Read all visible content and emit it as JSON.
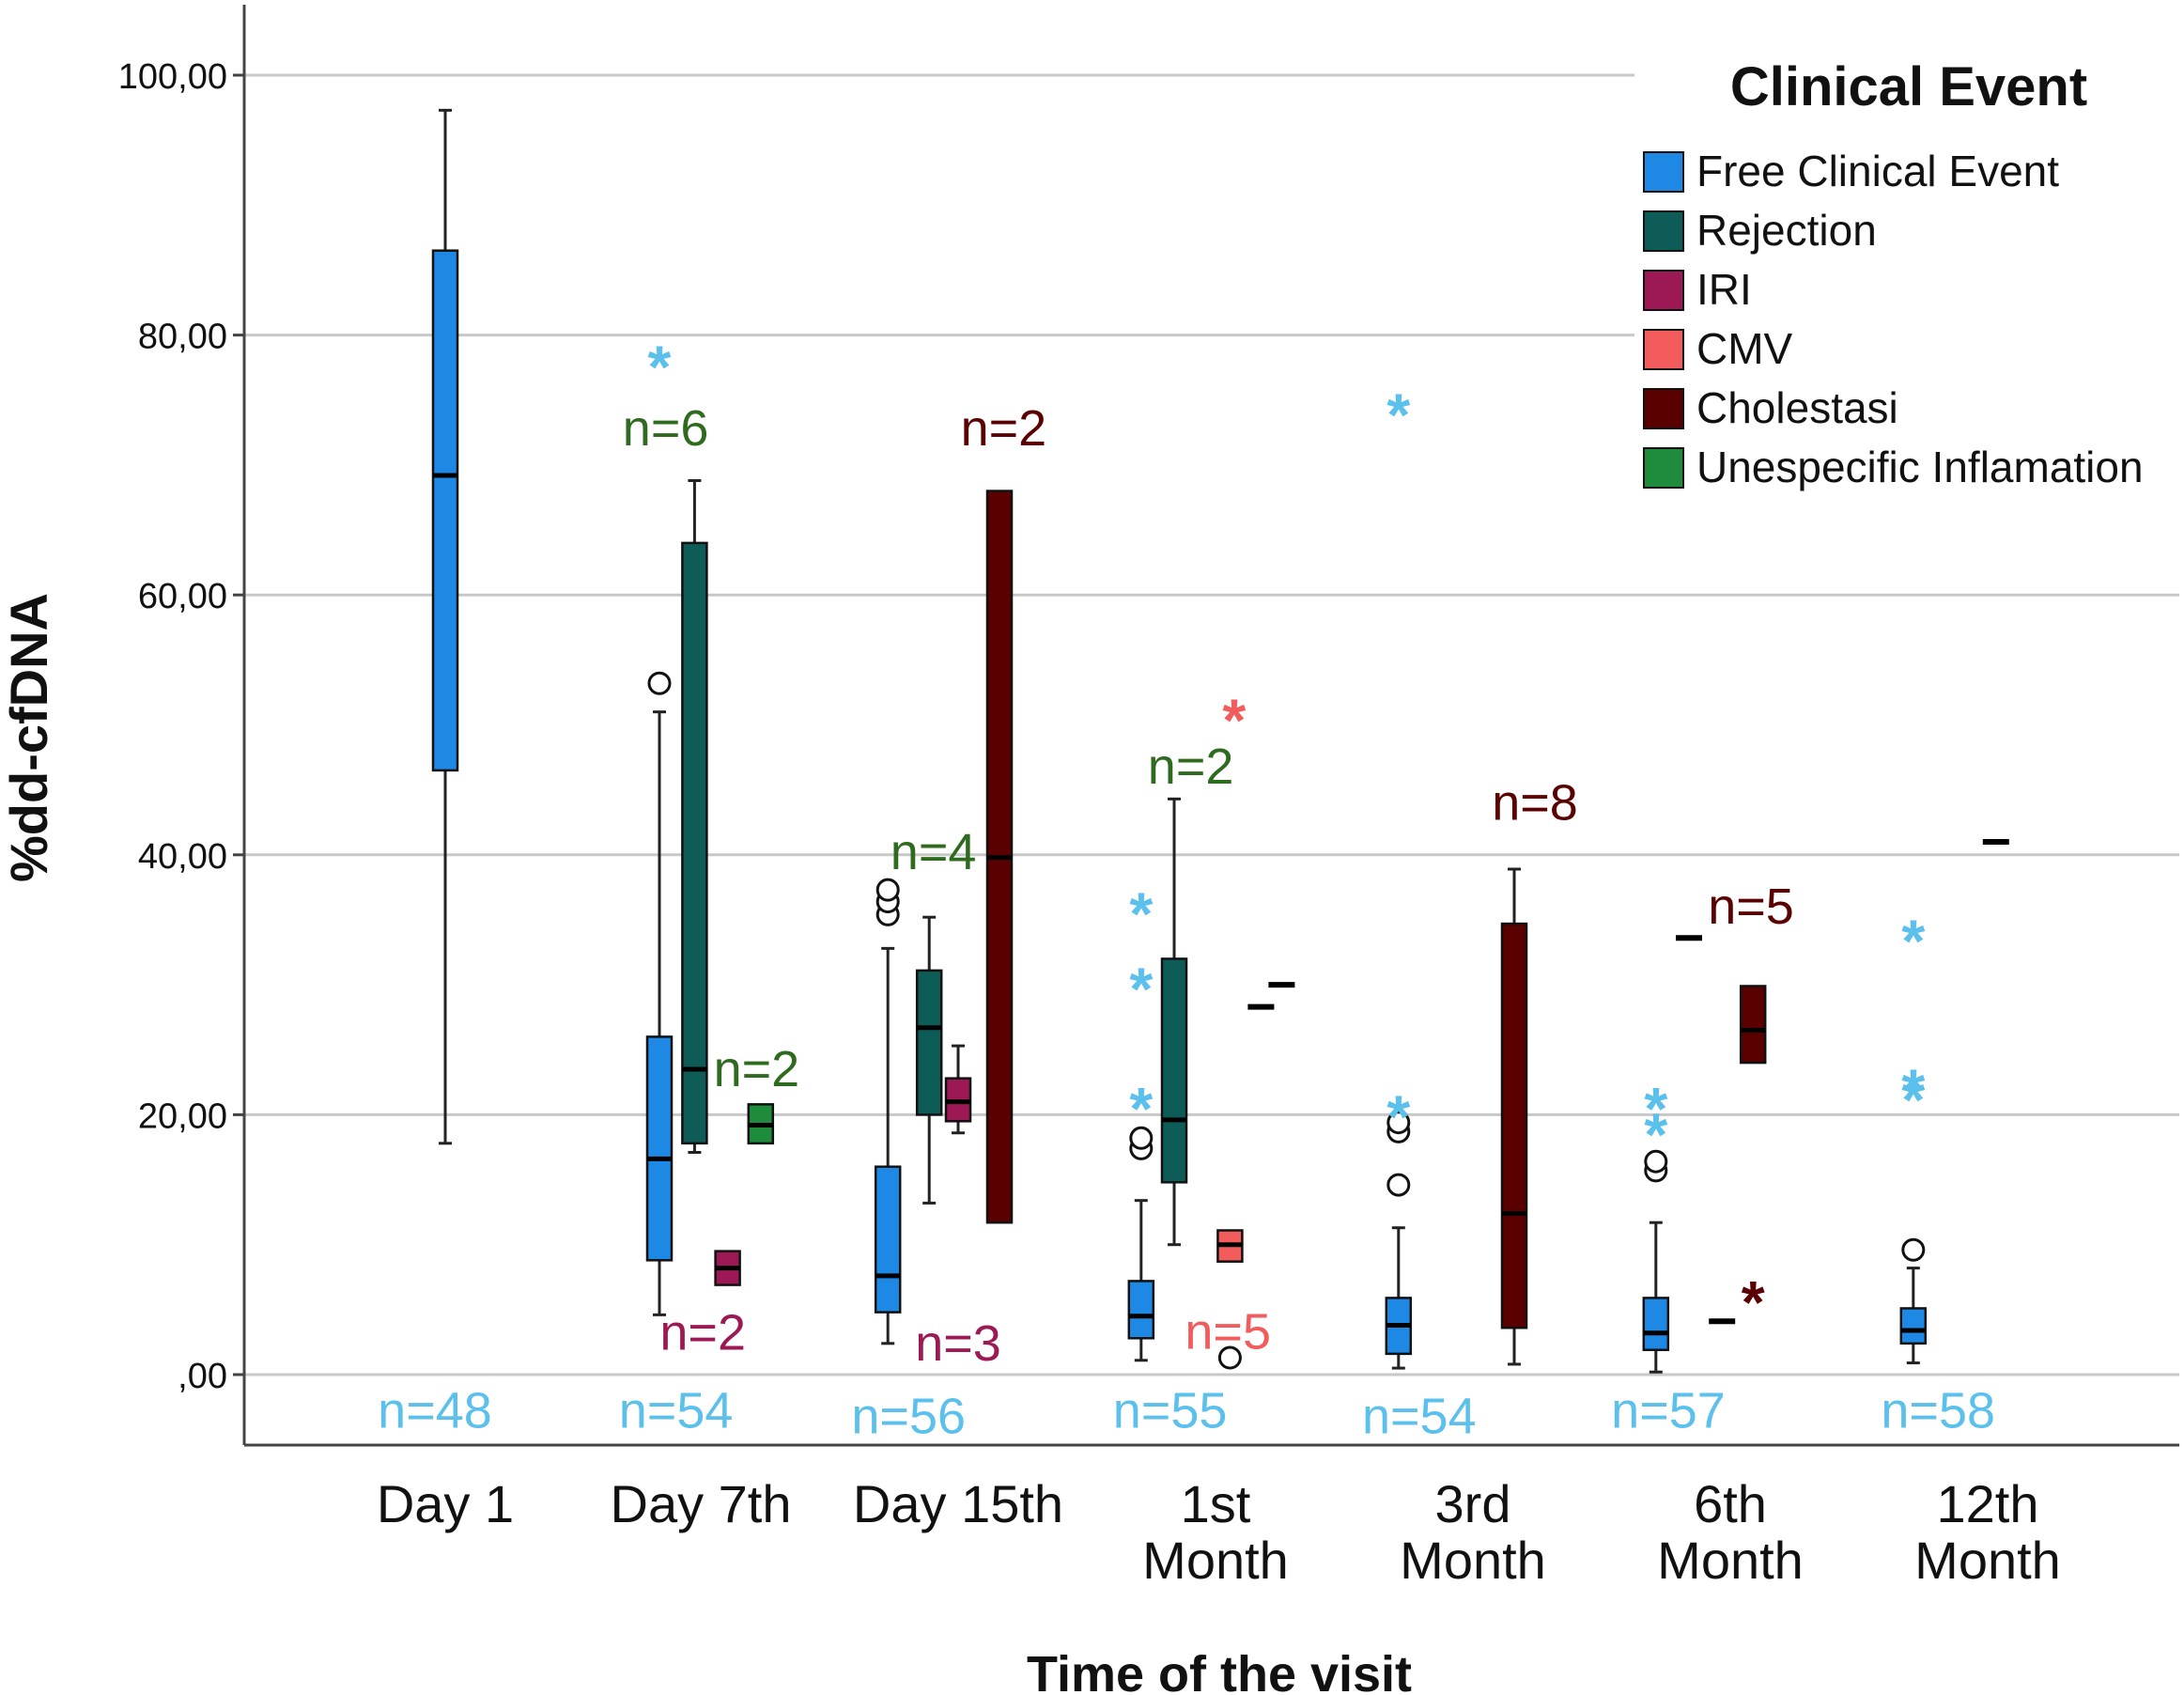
{
  "chart_data": {
    "type": "boxplot",
    "title": "",
    "xlabel": "Time of the visit",
    "ylabel": "%dd-cfDNA",
    "ylim": [
      0,
      100
    ],
    "yticks": [
      {
        "value": 0,
        "label": ",00"
      },
      {
        "value": 20,
        "label": "20,00"
      },
      {
        "value": 40,
        "label": "40,00"
      },
      {
        "value": 60,
        "label": "60,00"
      },
      {
        "value": 80,
        "label": "80,00"
      },
      {
        "value": 100,
        "label": "100,00"
      }
    ],
    "grid": true,
    "categories": [
      {
        "lines": [
          "Day 1"
        ]
      },
      {
        "lines": [
          "Day 7th"
        ]
      },
      {
        "lines": [
          "Day 15th"
        ]
      },
      {
        "lines": [
          "1st",
          "Month"
        ]
      },
      {
        "lines": [
          "3rd",
          "Month"
        ]
      },
      {
        "lines": [
          "6th",
          "Month"
        ]
      },
      {
        "lines": [
          "12th",
          "Month"
        ]
      }
    ],
    "legend": {
      "title": "Clinical Event",
      "position": "top-right",
      "items": [
        {
          "label": "Free Clinical Event",
          "color": "#1E88E5"
        },
        {
          "label": "Rejection",
          "color": "#0E5C57"
        },
        {
          "label": "IRI",
          "color": "#9C1956"
        },
        {
          "label": "CMV",
          "color": "#F25C5C"
        },
        {
          "label": "Cholestasi",
          "color": "#5A0000"
        },
        {
          "label": "Unespecific Inflamation",
          "color": "#1E8C3C"
        }
      ]
    },
    "series_colors": {
      "Free Clinical Event": "#1E88E5",
      "Rejection": "#0E5C57",
      "IRI": "#9C1956",
      "CMV": "#F25C5C",
      "Cholestasi": "#5A0000",
      "Unespecific Inflamation": "#1E8C3C"
    },
    "outlier_colors": {
      "Free Clinical Event": "#5BC0EB",
      "CMV": "#F25C5C",
      "Cholestasi": "#5A0000"
    },
    "boxes": [
      {
        "category": 0,
        "series": "Free Clinical Event",
        "slot": 0,
        "whisker_low": 17.8,
        "q1": 46.5,
        "median": 69.2,
        "q3": 86.5,
        "whisker_high": 97.3
      },
      {
        "category": 1,
        "series": "Free Clinical Event",
        "slot": -1,
        "whisker_low": 4.6,
        "q1": 8.8,
        "median": 16.6,
        "q3": 26.0,
        "whisker_high": 51.0
      },
      {
        "category": 1,
        "series": "Rejection",
        "slot": -0.15,
        "whisker_low": 17.1,
        "q1": 17.8,
        "median": 23.5,
        "q3": 64.0,
        "whisker_high": 68.8
      },
      {
        "category": 1,
        "series": "IRI",
        "slot": 0.65,
        "q1": 6.9,
        "median": 8.2,
        "q3": 9.5
      },
      {
        "category": 1,
        "series": "Unespecific Inflamation",
        "slot": 1.45,
        "q1": 17.8,
        "median": 19.2,
        "q3": 20.8
      },
      {
        "category": 2,
        "series": "Free Clinical Event",
        "slot": -1.7,
        "whisker_low": 2.4,
        "q1": 4.8,
        "median": 7.6,
        "q3": 16.0,
        "whisker_high": 32.8
      },
      {
        "category": 2,
        "series": "Rejection",
        "slot": -0.7,
        "whisker_low": 13.2,
        "q1": 20.0,
        "median": 26.7,
        "q3": 31.1,
        "whisker_high": 35.2
      },
      {
        "category": 2,
        "series": "IRI",
        "slot": 0,
        "whisker_low": 18.6,
        "q1": 19.5,
        "median": 21.0,
        "q3": 22.8,
        "whisker_high": 25.3
      },
      {
        "category": 2,
        "series": "Cholestasi",
        "slot": 1.0,
        "q1": 11.7,
        "median": 39.8,
        "q3": 68.0
      },
      {
        "category": 3,
        "series": "Free Clinical Event",
        "slot": -1.8,
        "whisker_low": 1.1,
        "q1": 2.8,
        "median": 4.5,
        "q3": 7.2,
        "whisker_high": 13.4
      },
      {
        "category": 3,
        "series": "Rejection",
        "slot": -1.0,
        "whisker_low": 10.0,
        "q1": 14.8,
        "median": 19.6,
        "q3": 32.0,
        "whisker_high": 44.3
      },
      {
        "category": 3,
        "series": "CMV",
        "slot": 0.35,
        "q1": 8.7,
        "median": 10.0,
        "q3": 11.1
      },
      {
        "category": 3,
        "series": "Unespecific Inflamation",
        "slot": 1.1,
        "single": true,
        "median": 28.3
      },
      {
        "category": 3,
        "series": "Cholestasi",
        "slot": 1.6,
        "single": true,
        "median": 30.0
      },
      {
        "category": 4,
        "series": "Free Clinical Event",
        "slot": -1.8,
        "whisker_low": 0.5,
        "q1": 1.6,
        "median": 3.8,
        "q3": 5.9,
        "whisker_high": 11.3
      },
      {
        "category": 4,
        "series": "Cholestasi",
        "slot": 1.0,
        "whisker_low": 0.8,
        "q1": 3.6,
        "median": 12.4,
        "q3": 34.7,
        "whisker_high": 38.9
      },
      {
        "category": 5,
        "series": "Free Clinical Event",
        "slot": -1.8,
        "whisker_low": 0.2,
        "q1": 1.9,
        "median": 3.2,
        "q3": 5.9,
        "whisker_high": 11.7
      },
      {
        "category": 5,
        "series": "Rejection",
        "slot": -0.2,
        "single": true,
        "median": 4.1
      },
      {
        "category": 5,
        "series": "Unespecific Inflamation",
        "slot": -1.0,
        "single": true,
        "median": 33.6
      },
      {
        "category": 5,
        "series": "Cholestasi",
        "slot": 0.55,
        "q1": 24.0,
        "median": 26.5,
        "q3": 29.9
      },
      {
        "category": 6,
        "series": "Free Clinical Event",
        "slot": -1.8,
        "whisker_low": 0.9,
        "q1": 2.4,
        "median": 3.4,
        "q3": 5.1,
        "whisker_high": 8.2
      },
      {
        "category": 6,
        "series": "Rejection",
        "slot": 0.2,
        "single": true,
        "median": 41.0
      }
    ],
    "outliers": [
      {
        "category": 1,
        "series": "Free Clinical Event",
        "slot": -1,
        "value": 53.2,
        "marker": "circle"
      },
      {
        "category": 1,
        "series": "Free Clinical Event",
        "slot": -1,
        "value": 78.0,
        "marker": "star"
      },
      {
        "category": 2,
        "series": "Free Clinical Event",
        "slot": -1.7,
        "value": 35.4,
        "marker": "circle"
      },
      {
        "category": 2,
        "series": "Free Clinical Event",
        "slot": -1.7,
        "value": 36.4,
        "marker": "circle"
      },
      {
        "category": 2,
        "series": "Free Clinical Event",
        "slot": -1.7,
        "value": 37.3,
        "marker": "circle"
      },
      {
        "category": 3,
        "series": "Free Clinical Event",
        "slot": -1.8,
        "value": 17.4,
        "marker": "circle"
      },
      {
        "category": 3,
        "series": "Free Clinical Event",
        "slot": -1.8,
        "value": 18.2,
        "marker": "circle"
      },
      {
        "category": 3,
        "series": "Free Clinical Event",
        "slot": -1.8,
        "value": 20.9,
        "marker": "star"
      },
      {
        "category": 3,
        "series": "Free Clinical Event",
        "slot": -1.8,
        "value": 30.1,
        "marker": "star"
      },
      {
        "category": 3,
        "series": "Free Clinical Event",
        "slot": -1.8,
        "value": 35.9,
        "marker": "star"
      },
      {
        "category": 3,
        "series": "CMV",
        "slot": 0.35,
        "value": 1.3,
        "marker": "circle"
      },
      {
        "category": 3,
        "series": "CMV",
        "slot": 0.45,
        "value": 50.8,
        "marker": "star"
      },
      {
        "category": 4,
        "series": "Free Clinical Event",
        "slot": -1.8,
        "value": 14.6,
        "marker": "circle"
      },
      {
        "category": 4,
        "series": "Free Clinical Event",
        "slot": -1.8,
        "value": 18.7,
        "marker": "circle"
      },
      {
        "category": 4,
        "series": "Free Clinical Event",
        "slot": -1.8,
        "value": 19.4,
        "marker": "circle"
      },
      {
        "category": 4,
        "series": "Free Clinical Event",
        "slot": -1.8,
        "value": 20.3,
        "marker": "star"
      },
      {
        "category": 4,
        "series": "Free Clinical Event",
        "slot": -1.8,
        "value": 74.3,
        "marker": "star"
      },
      {
        "category": 5,
        "series": "Free Clinical Event",
        "slot": -1.8,
        "value": 15.7,
        "marker": "circle"
      },
      {
        "category": 5,
        "series": "Free Clinical Event",
        "slot": -1.8,
        "value": 16.4,
        "marker": "circle"
      },
      {
        "category": 5,
        "series": "Free Clinical Event",
        "slot": -1.8,
        "value": 18.9,
        "marker": "star"
      },
      {
        "category": 5,
        "series": "Free Clinical Event",
        "slot": -1.8,
        "value": 20.9,
        "marker": "star"
      },
      {
        "category": 5,
        "series": "Cholestasi",
        "slot": 0.55,
        "value": 6.0,
        "marker": "star"
      },
      {
        "category": 6,
        "series": "Free Clinical Event",
        "slot": -1.8,
        "value": 9.6,
        "marker": "circle"
      },
      {
        "category": 6,
        "series": "Free Clinical Event",
        "slot": -1.8,
        "value": 21.6,
        "marker": "star"
      },
      {
        "category": 6,
        "series": "Free Clinical Event",
        "slot": -1.8,
        "value": 22.3,
        "marker": "star"
      },
      {
        "category": 6,
        "series": "Free Clinical Event",
        "slot": -1.8,
        "value": 33.8,
        "marker": "star"
      }
    ],
    "annotations": [
      {
        "text": "n=48",
        "category": 0,
        "slot": -0.25,
        "value": -2.8,
        "color": "#5BC0EB"
      },
      {
        "text": "n=54",
        "category": 1,
        "slot": -0.6,
        "value": -2.8,
        "color": "#5BC0EB"
      },
      {
        "text": "n=56",
        "category": 2,
        "slot": -1.2,
        "value": -3.2,
        "color": "#5BC0EB"
      },
      {
        "text": "n=55",
        "category": 3,
        "slot": -1.1,
        "value": -2.8,
        "color": "#5BC0EB"
      },
      {
        "text": "n=54",
        "category": 4,
        "slot": -1.3,
        "value": -3.2,
        "color": "#5BC0EB"
      },
      {
        "text": "n=57",
        "category": 5,
        "slot": -1.5,
        "value": -2.8,
        "color": "#5BC0EB"
      },
      {
        "text": "n=58",
        "category": 6,
        "slot": -1.2,
        "value": -2.8,
        "color": "#5BC0EB"
      },
      {
        "text": "n=6",
        "category": 1,
        "slot": -0.85,
        "value": 72.8,
        "color": "#2E6B1E"
      },
      {
        "text": "n=2",
        "category": 1,
        "slot": 0.05,
        "value": 3.2,
        "color": "#9C1956"
      },
      {
        "text": "n=2",
        "category": 1,
        "slot": 1.35,
        "value": 23.5,
        "color": "#2E6B1E"
      },
      {
        "text": "n=4",
        "category": 2,
        "slot": -0.6,
        "value": 40.2,
        "color": "#2E6B1E"
      },
      {
        "text": "n=3",
        "category": 2,
        "slot": 0,
        "value": 2.4,
        "color": "#9C1956"
      },
      {
        "text": "n=2",
        "category": 2,
        "slot": 1.1,
        "value": 72.8,
        "color": "#5A0000"
      },
      {
        "text": "n=2",
        "category": 3,
        "slot": -0.6,
        "value": 46.8,
        "color": "#2E6B1E"
      },
      {
        "text": "n=5",
        "category": 3,
        "slot": 0.3,
        "value": 3.3,
        "color": "#F25C5C"
      },
      {
        "text": "n=8",
        "category": 4,
        "slot": 1.5,
        "value": 44.0,
        "color": "#5A0000"
      },
      {
        "text": "n=5",
        "category": 5,
        "slot": 0.5,
        "value": 36.0,
        "color": "#5A0000"
      }
    ]
  }
}
